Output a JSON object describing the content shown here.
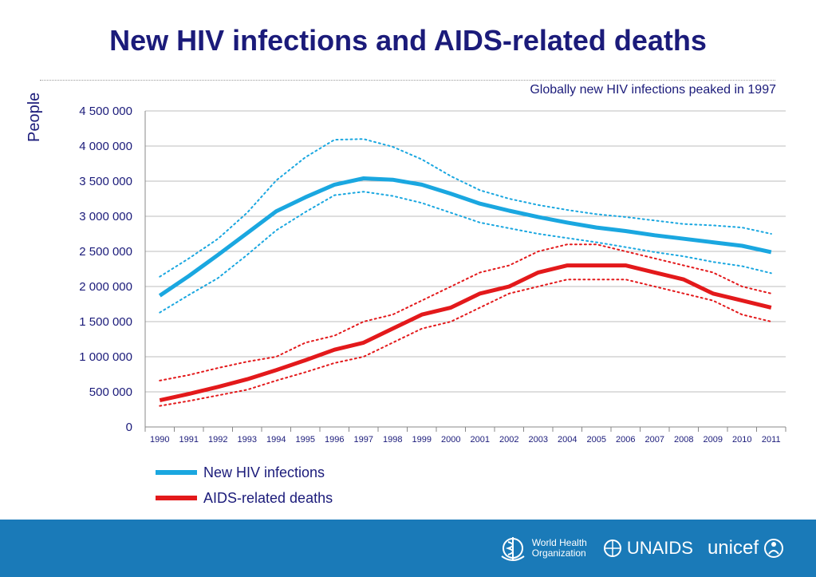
{
  "slide": {
    "title": "New HIV infections and AIDS-related deaths",
    "subtitle": "Globally new HIV infections peaked in 1997"
  },
  "chart_data": {
    "type": "line",
    "ylabel": "People",
    "ylim": [
      0,
      4500000
    ],
    "yticks": [
      0,
      500000,
      1000000,
      1500000,
      2000000,
      2500000,
      3000000,
      3500000,
      4000000,
      4500000
    ],
    "ytick_labels": [
      "0",
      "500 000",
      "1 000 000",
      "1 500 000",
      "2 000 000",
      "2 500 000",
      "3 000 000",
      "3 500 000",
      "4 000 000",
      "4 500 000"
    ],
    "grid": true,
    "legend_position": "bottom-left",
    "x": [
      "1990",
      "1991",
      "1992",
      "1993",
      "1994",
      "1995",
      "1996",
      "1997",
      "1998",
      "1999",
      "2000",
      "2001",
      "2002",
      "2003",
      "2004",
      "2005",
      "2006",
      "2007",
      "2008",
      "2009",
      "2010",
      "2011"
    ],
    "series": [
      {
        "name": "New HIV infections",
        "color": "#1aa7e0",
        "values": [
          1870000,
          2150000,
          2450000,
          2760000,
          3070000,
          3270000,
          3450000,
          3540000,
          3520000,
          3450000,
          3320000,
          3180000,
          3080000,
          2990000,
          2910000,
          2840000,
          2790000,
          2730000,
          2680000,
          2630000,
          2580000,
          2490000
        ],
        "upper": [
          2140000,
          2400000,
          2680000,
          3050000,
          3510000,
          3840000,
          4090000,
          4100000,
          3990000,
          3810000,
          3570000,
          3370000,
          3250000,
          3160000,
          3090000,
          3030000,
          2990000,
          2940000,
          2890000,
          2870000,
          2840000,
          2750000
        ],
        "lower": [
          1630000,
          1880000,
          2120000,
          2450000,
          2800000,
          3060000,
          3300000,
          3350000,
          3290000,
          3190000,
          3050000,
          2910000,
          2830000,
          2750000,
          2690000,
          2630000,
          2560000,
          2490000,
          2430000,
          2350000,
          2290000,
          2190000
        ]
      },
      {
        "name": "AIDS-related deaths",
        "color": "#e3191b",
        "values": [
          380000,
          470000,
          570000,
          680000,
          810000,
          950000,
          1100000,
          1200000,
          1400000,
          1600000,
          1700000,
          1900000,
          2000000,
          2200000,
          2300000,
          2300000,
          2300000,
          2200000,
          2100000,
          1900000,
          1800000,
          1700000
        ],
        "upper": [
          660000,
          740000,
          840000,
          930000,
          1000000,
          1200000,
          1300000,
          1500000,
          1600000,
          1800000,
          2000000,
          2200000,
          2300000,
          2500000,
          2600000,
          2600000,
          2500000,
          2400000,
          2300000,
          2200000,
          2000000,
          1900000
        ],
        "lower": [
          300000,
          370000,
          450000,
          530000,
          660000,
          780000,
          910000,
          1000000,
          1200000,
          1400000,
          1500000,
          1700000,
          1900000,
          2000000,
          2100000,
          2100000,
          2100000,
          2000000,
          1900000,
          1800000,
          1600000,
          1500000
        ]
      }
    ]
  },
  "footer": {
    "logos": {
      "who": "World Health Organization",
      "who_line1": "World Health",
      "who_line2": "Organization",
      "unaids": "UNAIDS",
      "unicef": "unicef"
    }
  }
}
